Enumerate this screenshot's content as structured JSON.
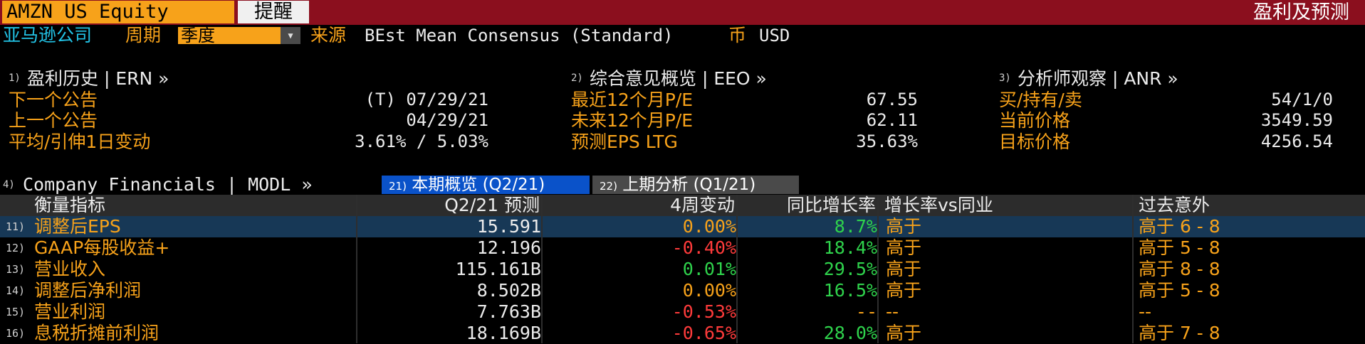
{
  "topbar": {
    "ticker": "AMZN US Equity",
    "alert_button": "提醒",
    "screen_title": "盈利及预测"
  },
  "subheader": {
    "company": "亚马逊公司",
    "period_label": "周期",
    "period_value": "季度",
    "source_label": "来源",
    "source_value": "BEst Mean Consensus (Standard)",
    "currency_label": "币",
    "currency_value": "USD"
  },
  "sections": {
    "earnings_history": {
      "num": "1)",
      "title": "盈利历史 | ERN »",
      "rows": [
        {
          "label": "下一个公告",
          "value": "(T)  07/29/21"
        },
        {
          "label": "上一个公告",
          "value": "04/29/21"
        },
        {
          "label": "平均/引伸1日变动",
          "value": "3.61% / 5.03%"
        }
      ]
    },
    "consensus": {
      "num": "2)",
      "title": "综合意见概览 | EEO »",
      "rows": [
        {
          "label": "最近12个月P/E",
          "value": "67.55"
        },
        {
          "label": "未来12个月P/E",
          "value": "62.11"
        },
        {
          "label": "预测EPS LTG",
          "value": "35.63%"
        }
      ]
    },
    "analyst": {
      "num": "3)",
      "title": "分析师观察 | ANR »",
      "rows": [
        {
          "label": "买/持有/卖",
          "value": "54/1/0"
        },
        {
          "label": "当前价格",
          "value": "3549.59"
        },
        {
          "label": "目标价格",
          "value": "4256.54"
        }
      ]
    },
    "financials": {
      "num": "4)",
      "title": "Company Financials | MODL »"
    }
  },
  "tabs": [
    {
      "num": "21)",
      "label": "本期概览 (Q2/21)"
    },
    {
      "num": "22)",
      "label": "上期分析 (Q1/21)"
    }
  ],
  "table": {
    "headers": [
      "衡量指标",
      "Q2/21 预测",
      "4周变动",
      "同比增长率",
      "增长率vs同业",
      "过去意外"
    ],
    "rows": [
      {
        "num": "11)",
        "metric": "调整后EPS",
        "forecast": "15.591",
        "chg4w": "0.00%",
        "chg_color": "orange",
        "yoy": "8.7%",
        "vs_peers": "高于",
        "surprise": "高于 6 - 8"
      },
      {
        "num": "12)",
        "metric": "GAAP每股收益+",
        "forecast": "12.196",
        "chg4w": "-0.40%",
        "chg_color": "red",
        "yoy": "18.4%",
        "vs_peers": "高于",
        "surprise": "高于 5 - 8"
      },
      {
        "num": "13)",
        "metric": "营业收入",
        "forecast": "115.161B",
        "chg4w": "0.01%",
        "chg_color": "green",
        "yoy": "29.5%",
        "vs_peers": "高于",
        "surprise": "高于 8 - 8"
      },
      {
        "num": "14)",
        "metric": "调整后净利润",
        "forecast": "8.502B",
        "chg4w": "0.00%",
        "chg_color": "orange",
        "yoy": "16.5%",
        "vs_peers": "高于",
        "surprise": "高于 5 - 8"
      },
      {
        "num": "15)",
        "metric": "营业利润",
        "forecast": "7.763B",
        "chg4w": "-0.53%",
        "chg_color": "red",
        "yoy": "--",
        "vs_peers": "--",
        "surprise": "--"
      },
      {
        "num": "16)",
        "metric": "息税折摊前利润",
        "forecast": "18.169B",
        "chg4w": "-0.65%",
        "chg_color": "red",
        "yoy": "28.0%",
        "vs_peers": "高于",
        "surprise": "高于 7 - 8"
      }
    ]
  }
}
